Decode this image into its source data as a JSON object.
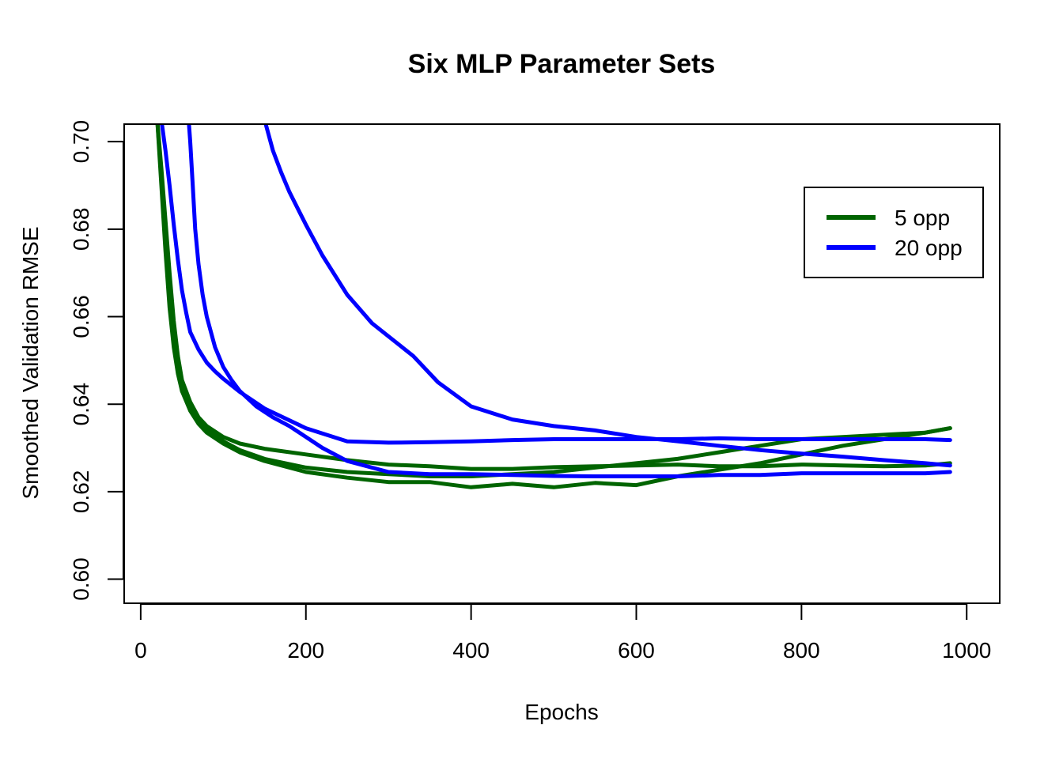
{
  "chart_data": {
    "type": "line",
    "title": "Six MLP Parameter Sets",
    "xlabel": "Epochs",
    "ylabel": "Smoothed Validation RMSE",
    "xlim": [
      -20,
      1040
    ],
    "ylim": [
      0.5945,
      0.704
    ],
    "x_ticks": [
      0,
      200,
      400,
      600,
      800,
      1000
    ],
    "y_ticks": [
      0.6,
      0.62,
      0.64,
      0.66,
      0.68,
      0.7
    ],
    "x_tick_labels": [
      "0",
      "200",
      "400",
      "600",
      "800",
      "1000"
    ],
    "y_tick_labels": [
      "0.60",
      "0.62",
      "0.64",
      "0.66",
      "0.68",
      "0.70"
    ],
    "grid": false,
    "legend_position": "top-right",
    "legend": [
      {
        "label": "5 opp",
        "color": "#006400"
      },
      {
        "label": "20 opp",
        "color": "#0000ff"
      }
    ],
    "series": [
      {
        "group": "5 opp",
        "color": "#006400",
        "x": [
          20,
          25,
          30,
          35,
          40,
          45,
          50,
          60,
          70,
          80,
          100,
          120,
          150,
          200,
          250,
          300,
          350,
          400,
          450,
          500,
          550,
          600,
          650,
          700,
          750,
          800,
          850,
          900,
          950,
          980
        ],
        "y": [
          0.705,
          0.69,
          0.675,
          0.662,
          0.653,
          0.647,
          0.643,
          0.639,
          0.6365,
          0.6345,
          0.6315,
          0.6295,
          0.6275,
          0.6255,
          0.6245,
          0.624,
          0.6235,
          0.6235,
          0.624,
          0.6245,
          0.6255,
          0.6265,
          0.6275,
          0.629,
          0.6305,
          0.632,
          0.6325,
          0.633,
          0.6335,
          0.6345
        ]
      },
      {
        "group": "5 opp",
        "color": "#006400",
        "x": [
          20,
          25,
          30,
          35,
          40,
          45,
          50,
          60,
          70,
          80,
          100,
          120,
          150,
          200,
          250,
          300,
          350,
          400,
          450,
          500,
          550,
          600,
          650,
          700,
          750,
          800,
          850,
          900,
          950,
          980
        ],
        "y": [
          0.705,
          0.692,
          0.678,
          0.665,
          0.655,
          0.648,
          0.643,
          0.6385,
          0.6355,
          0.6335,
          0.631,
          0.629,
          0.627,
          0.6245,
          0.6232,
          0.6222,
          0.6222,
          0.621,
          0.6218,
          0.621,
          0.622,
          0.6215,
          0.6235,
          0.625,
          0.6265,
          0.6285,
          0.6305,
          0.632,
          0.6335,
          0.6345
        ]
      },
      {
        "group": "5 opp",
        "color": "#006400",
        "x": [
          20,
          25,
          30,
          35,
          40,
          45,
          50,
          60,
          70,
          80,
          100,
          120,
          150,
          200,
          250,
          300,
          350,
          400,
          450,
          500,
          550,
          600,
          650,
          700,
          750,
          800,
          850,
          900,
          950,
          980
        ],
        "y": [
          0.705,
          0.694,
          0.682,
          0.67,
          0.659,
          0.651,
          0.6455,
          0.6405,
          0.637,
          0.635,
          0.6325,
          0.631,
          0.6298,
          0.6285,
          0.6272,
          0.6262,
          0.6258,
          0.6252,
          0.6252,
          0.6256,
          0.6258,
          0.626,
          0.6262,
          0.6258,
          0.6258,
          0.6262,
          0.626,
          0.6258,
          0.626,
          0.6265
        ]
      },
      {
        "group": "20 opp",
        "color": "#0000ff",
        "x": [
          25,
          30,
          35,
          40,
          45,
          50,
          55,
          60,
          70,
          80,
          90,
          100,
          120,
          150,
          200,
          250,
          300,
          350,
          400,
          450,
          500,
          550,
          600,
          650,
          700,
          750,
          800,
          850,
          900,
          950,
          980
        ],
        "y": [
          0.705,
          0.698,
          0.69,
          0.681,
          0.673,
          0.666,
          0.661,
          0.6565,
          0.6525,
          0.6495,
          0.6475,
          0.6458,
          0.6428,
          0.639,
          0.6345,
          0.6315,
          0.6312,
          0.6313,
          0.6315,
          0.6318,
          0.632,
          0.632,
          0.632,
          0.632,
          0.6322,
          0.632,
          0.632,
          0.632,
          0.632,
          0.632,
          0.6318
        ]
      },
      {
        "group": "20 opp",
        "color": "#0000ff",
        "x": [
          58,
          60,
          63,
          66,
          70,
          75,
          80,
          90,
          100,
          110,
          120,
          140,
          160,
          180,
          200,
          220,
          250,
          300,
          350,
          400,
          450,
          500,
          550,
          600,
          650,
          700,
          750,
          800,
          850,
          900,
          950,
          980
        ],
        "y": [
          0.705,
          0.7,
          0.69,
          0.68,
          0.672,
          0.665,
          0.66,
          0.653,
          0.6485,
          0.6455,
          0.643,
          0.6395,
          0.637,
          0.635,
          0.6325,
          0.63,
          0.627,
          0.6245,
          0.624,
          0.624,
          0.6238,
          0.6236,
          0.6235,
          0.6235,
          0.6235,
          0.6238,
          0.6238,
          0.6242,
          0.6242,
          0.6242,
          0.6242,
          0.6245
        ]
      },
      {
        "group": "20 opp",
        "color": "#0000ff",
        "x": [
          150,
          160,
          170,
          180,
          200,
          220,
          250,
          280,
          300,
          330,
          360,
          400,
          450,
          500,
          550,
          600,
          650,
          700,
          750,
          800,
          850,
          900,
          950,
          980
        ],
        "y": [
          0.705,
          0.698,
          0.693,
          0.6885,
          0.681,
          0.674,
          0.665,
          0.6585,
          0.6555,
          0.651,
          0.645,
          0.6395,
          0.6365,
          0.635,
          0.634,
          0.6325,
          0.6315,
          0.6305,
          0.6295,
          0.6287,
          0.628,
          0.6272,
          0.6265,
          0.626
        ]
      }
    ]
  }
}
